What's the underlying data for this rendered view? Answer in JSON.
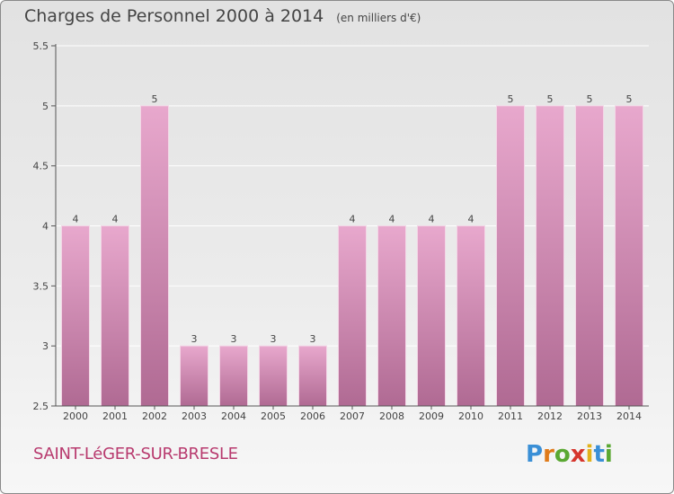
{
  "chart_data": {
    "type": "bar",
    "title": "Charges de Personnel 2000 à 2014",
    "subtitle": "(en milliers d'€)",
    "categories": [
      "2000",
      "2001",
      "2002",
      "2003",
      "2004",
      "2005",
      "2006",
      "2007",
      "2008",
      "2009",
      "2010",
      "2011",
      "2012",
      "2013",
      "2014"
    ],
    "values": [
      4,
      4,
      5,
      3,
      3,
      3,
      3,
      4,
      4,
      4,
      4,
      5,
      5,
      5,
      5
    ],
    "ylim": [
      2.5,
      5.5
    ],
    "yticks": [
      2.5,
      3,
      3.5,
      4,
      4.5,
      5,
      5.5
    ],
    "ytick_labels": [
      "2.5",
      "3",
      "3.5",
      "4",
      "4.5",
      "5",
      "5.5"
    ],
    "grid": true,
    "bar_color": "#d58fb8"
  },
  "footer": {
    "city": "SAINT-LéGER-SUR-BRESLE",
    "logo_letters": [
      "P",
      "r",
      "o",
      "x",
      "i",
      "t",
      "i"
    ],
    "logo_colors": [
      "#3a8fd6",
      "#e07b1a",
      "#5aa832",
      "#d6362d",
      "#e2b21a",
      "#3a8fd6",
      "#5aa832"
    ]
  }
}
